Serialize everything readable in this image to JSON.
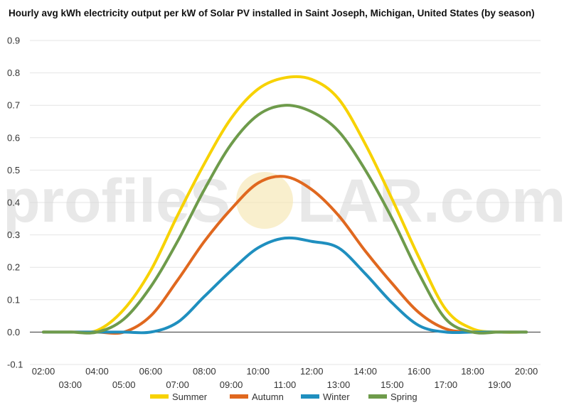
{
  "chart_data": {
    "type": "line",
    "title": "Hourly avg kWh electricity output per kW of Solar PV installed in Saint Joseph, Michigan, United States (by season)",
    "xlabel": "",
    "ylabel": "",
    "ylim": [
      -0.1,
      0.9
    ],
    "yticks": [
      "0.9",
      "0.8",
      "0.7",
      "0.6",
      "0.5",
      "0.4",
      "0.3",
      "0.2",
      "0.1",
      "0.0",
      "-0.1"
    ],
    "yticks_values": [
      0.9,
      0.8,
      0.7,
      0.6,
      0.5,
      0.4,
      0.3,
      0.2,
      0.1,
      0.0,
      -0.1
    ],
    "x": [
      "02:00",
      "03:00",
      "04:00",
      "05:00",
      "06:00",
      "07:00",
      "08:00",
      "09:00",
      "10:00",
      "11:00",
      "12:00",
      "13:00",
      "14:00",
      "15:00",
      "16:00",
      "17:00",
      "18:00",
      "19:00",
      "20:00"
    ],
    "grid": true,
    "legend_position": "bottom",
    "series": [
      {
        "name": "Summer",
        "color": "#f7d200",
        "values": [
          0.0,
          0.0,
          0.005,
          0.07,
          0.19,
          0.36,
          0.52,
          0.66,
          0.75,
          0.785,
          0.78,
          0.72,
          0.58,
          0.41,
          0.23,
          0.07,
          0.01,
          0.0,
          0.0
        ]
      },
      {
        "name": "Autumn",
        "color": "#e0681f",
        "values": [
          0.0,
          0.0,
          0.0,
          0.0,
          0.05,
          0.16,
          0.28,
          0.38,
          0.46,
          0.48,
          0.44,
          0.36,
          0.25,
          0.15,
          0.06,
          0.01,
          0.0,
          0.0,
          0.0
        ]
      },
      {
        "name": "Winter",
        "color": "#1f8fbf",
        "values": [
          0.0,
          0.0,
          0.0,
          0.0,
          0.0,
          0.03,
          0.11,
          0.19,
          0.26,
          0.29,
          0.28,
          0.26,
          0.18,
          0.09,
          0.02,
          0.0,
          0.0,
          0.0,
          0.0
        ]
      },
      {
        "name": "Spring",
        "color": "#6e9b4b",
        "values": [
          0.0,
          0.0,
          0.0,
          0.04,
          0.14,
          0.28,
          0.44,
          0.58,
          0.67,
          0.7,
          0.68,
          0.62,
          0.5,
          0.35,
          0.18,
          0.04,
          0.0,
          0.0,
          0.0
        ]
      }
    ]
  },
  "watermark": {
    "left": "profileS",
    "right": "LAR.com"
  }
}
